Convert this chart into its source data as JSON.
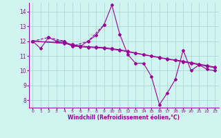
{
  "xlabel": "Windchill (Refroidissement éolien,°C)",
  "background_color": "#d0f5f0",
  "grid_color": "#b0ddd8",
  "line_color": "#990099",
  "xlim": [
    -0.5,
    23.5
  ],
  "ylim": [
    7.5,
    14.6
  ],
  "yticks": [
    8,
    9,
    10,
    11,
    12,
    13,
    14
  ],
  "xticks": [
    0,
    1,
    2,
    3,
    4,
    5,
    6,
    7,
    8,
    9,
    10,
    11,
    12,
    13,
    14,
    15,
    16,
    17,
    18,
    19,
    20,
    21,
    22,
    23
  ],
  "series": [
    {
      "x": [
        0,
        1,
        2,
        3,
        4,
        5,
        6,
        7,
        8,
        9,
        10,
        11,
        12,
        13,
        14,
        15,
        16,
        17,
        18,
        19,
        20,
        21,
        22,
        23
      ],
      "y": [
        12.0,
        11.5,
        12.25,
        12.0,
        12.0,
        11.65,
        11.65,
        12.0,
        12.4,
        13.1,
        14.45,
        12.45,
        11.1,
        10.5,
        10.5,
        9.6,
        7.7,
        8.5,
        9.4,
        11.4,
        10.0,
        10.4,
        10.1,
        10.0
      ],
      "linestyle": "-",
      "marker": true
    },
    {
      "x": [
        0,
        2,
        4,
        5,
        7,
        9
      ],
      "y": [
        12.0,
        12.25,
        12.0,
        11.65,
        12.0,
        13.1
      ],
      "linestyle": "--",
      "marker": true
    },
    {
      "x": [
        0,
        4,
        5,
        6,
        7,
        8,
        9,
        10,
        11,
        12,
        13,
        14,
        15,
        16,
        17,
        18,
        19,
        20,
        21,
        22,
        23
      ],
      "y": [
        12.0,
        11.85,
        11.72,
        11.62,
        11.58,
        11.55,
        11.52,
        11.45,
        11.38,
        11.28,
        11.18,
        11.08,
        10.98,
        10.88,
        10.78,
        10.7,
        10.6,
        10.5,
        10.4,
        10.3,
        10.2
      ],
      "linestyle": "-",
      "marker": true
    },
    {
      "x": [
        0,
        4,
        5,
        6,
        7,
        8,
        9,
        10,
        11,
        12,
        13,
        14,
        15,
        16,
        17,
        18,
        19,
        20,
        21,
        22,
        23
      ],
      "y": [
        12.0,
        11.9,
        11.78,
        11.68,
        11.63,
        11.6,
        11.57,
        11.5,
        11.42,
        11.32,
        11.2,
        11.1,
        11.0,
        10.9,
        10.8,
        10.73,
        10.65,
        10.55,
        10.45,
        10.35,
        10.25
      ],
      "linestyle": "-",
      "marker": true
    }
  ]
}
